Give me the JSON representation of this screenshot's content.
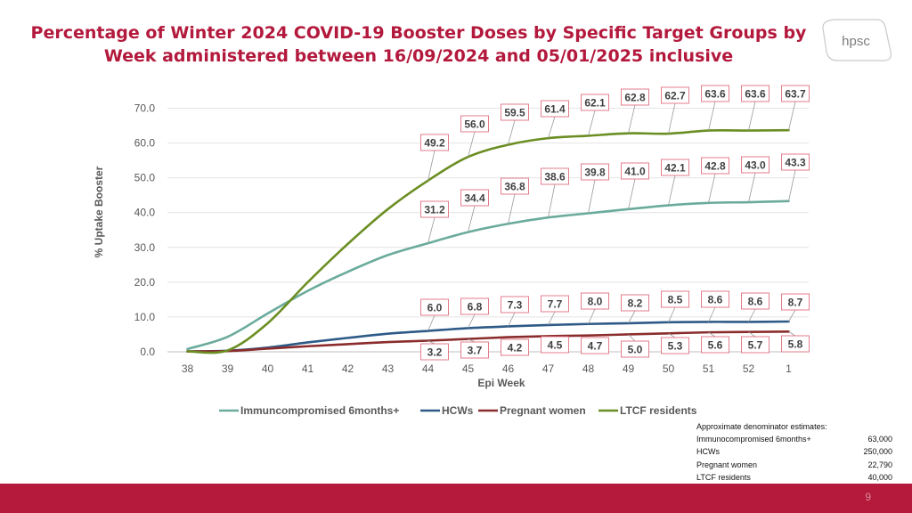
{
  "title": {
    "line1": "Percentage of Winter 2024 COVID-19 Booster Doses by Specific Target Groups by",
    "line2": "Week administered between 16/09/2024 and 05/01/2025 inclusive"
  },
  "logo_text": "hpsc",
  "colors": {
    "title": "#b3193c",
    "footer": "#b5193b",
    "immuno": "#6aab9c",
    "hcw": "#2e5a87",
    "pregnant": "#8b2c2c",
    "ltcf": "#6b8e23",
    "label_border": "#e07080"
  },
  "chart_data": {
    "type": "line",
    "xlabel": "Epi Week",
    "ylabel": "% Uptake Booster",
    "ylim": [
      0,
      75
    ],
    "yticks": [
      "0.0",
      "10.0",
      "20.0",
      "30.0",
      "40.0",
      "50.0",
      "60.0",
      "70.0"
    ],
    "categories": [
      "38",
      "39",
      "40",
      "41",
      "42",
      "43",
      "44",
      "45",
      "46",
      "47",
      "48",
      "49",
      "50",
      "51",
      "52",
      "1"
    ],
    "series": [
      {
        "name": "Immuncompromised 6months+",
        "color": "#6aab9c",
        "values": [
          0.8,
          4.3,
          11.0,
          17.5,
          23.0,
          27.8,
          31.2,
          34.4,
          36.8,
          38.6,
          39.8,
          41.0,
          42.1,
          42.8,
          43.0,
          43.3
        ],
        "labels": [
          null,
          null,
          null,
          null,
          null,
          null,
          "31.2",
          "34.4",
          "36.8",
          "38.6",
          "39.8",
          "41.0",
          "42.1",
          "42.8",
          "43.0",
          "43.3"
        ]
      },
      {
        "name": "HCWs",
        "color": "#2e5a87",
        "values": [
          0.1,
          0.3,
          1.2,
          2.7,
          4.0,
          5.2,
          6.0,
          6.8,
          7.3,
          7.7,
          8.0,
          8.2,
          8.5,
          8.6,
          8.6,
          8.7
        ],
        "labels": [
          null,
          null,
          null,
          null,
          null,
          null,
          "6.0",
          "6.8",
          "7.3",
          "7.7",
          "8.0",
          "8.2",
          "8.5",
          "8.6",
          "8.6",
          "8.7"
        ]
      },
      {
        "name": "Pregnant women",
        "color": "#8b2c2c",
        "values": [
          0.1,
          0.2,
          0.9,
          1.6,
          2.2,
          2.8,
          3.2,
          3.7,
          4.2,
          4.5,
          4.7,
          5.0,
          5.3,
          5.6,
          5.7,
          5.8
        ],
        "labels": [
          null,
          null,
          null,
          null,
          null,
          null,
          "3.2",
          "3.7",
          "4.2",
          "4.5",
          "4.7",
          "5.0",
          "5.3",
          "5.6",
          "5.7",
          "5.8"
        ]
      },
      {
        "name": "LTCF residents",
        "color": "#6b8e23",
        "values": [
          0.1,
          0.4,
          8.2,
          20.0,
          31.0,
          41.0,
          49.2,
          56.0,
          59.5,
          61.4,
          62.1,
          62.8,
          62.7,
          63.6,
          63.6,
          63.7
        ],
        "labels": [
          null,
          null,
          null,
          null,
          null,
          null,
          "49.2",
          "56.0",
          "59.5",
          "61.4",
          "62.1",
          "62.8",
          "62.7",
          "63.6",
          "63.6",
          "63.7"
        ]
      }
    ]
  },
  "denominators": {
    "heading": "Approximate denominator estimates:",
    "rows": [
      {
        "label": "Immunocompromised 6months+",
        "value": "63,000"
      },
      {
        "label": "HCWs",
        "value": "250,000"
      },
      {
        "label": "Pregnant women",
        "value": "22,790"
      },
      {
        "label": "LTCF residents",
        "value": "40,000"
      }
    ]
  },
  "page_number": "9"
}
